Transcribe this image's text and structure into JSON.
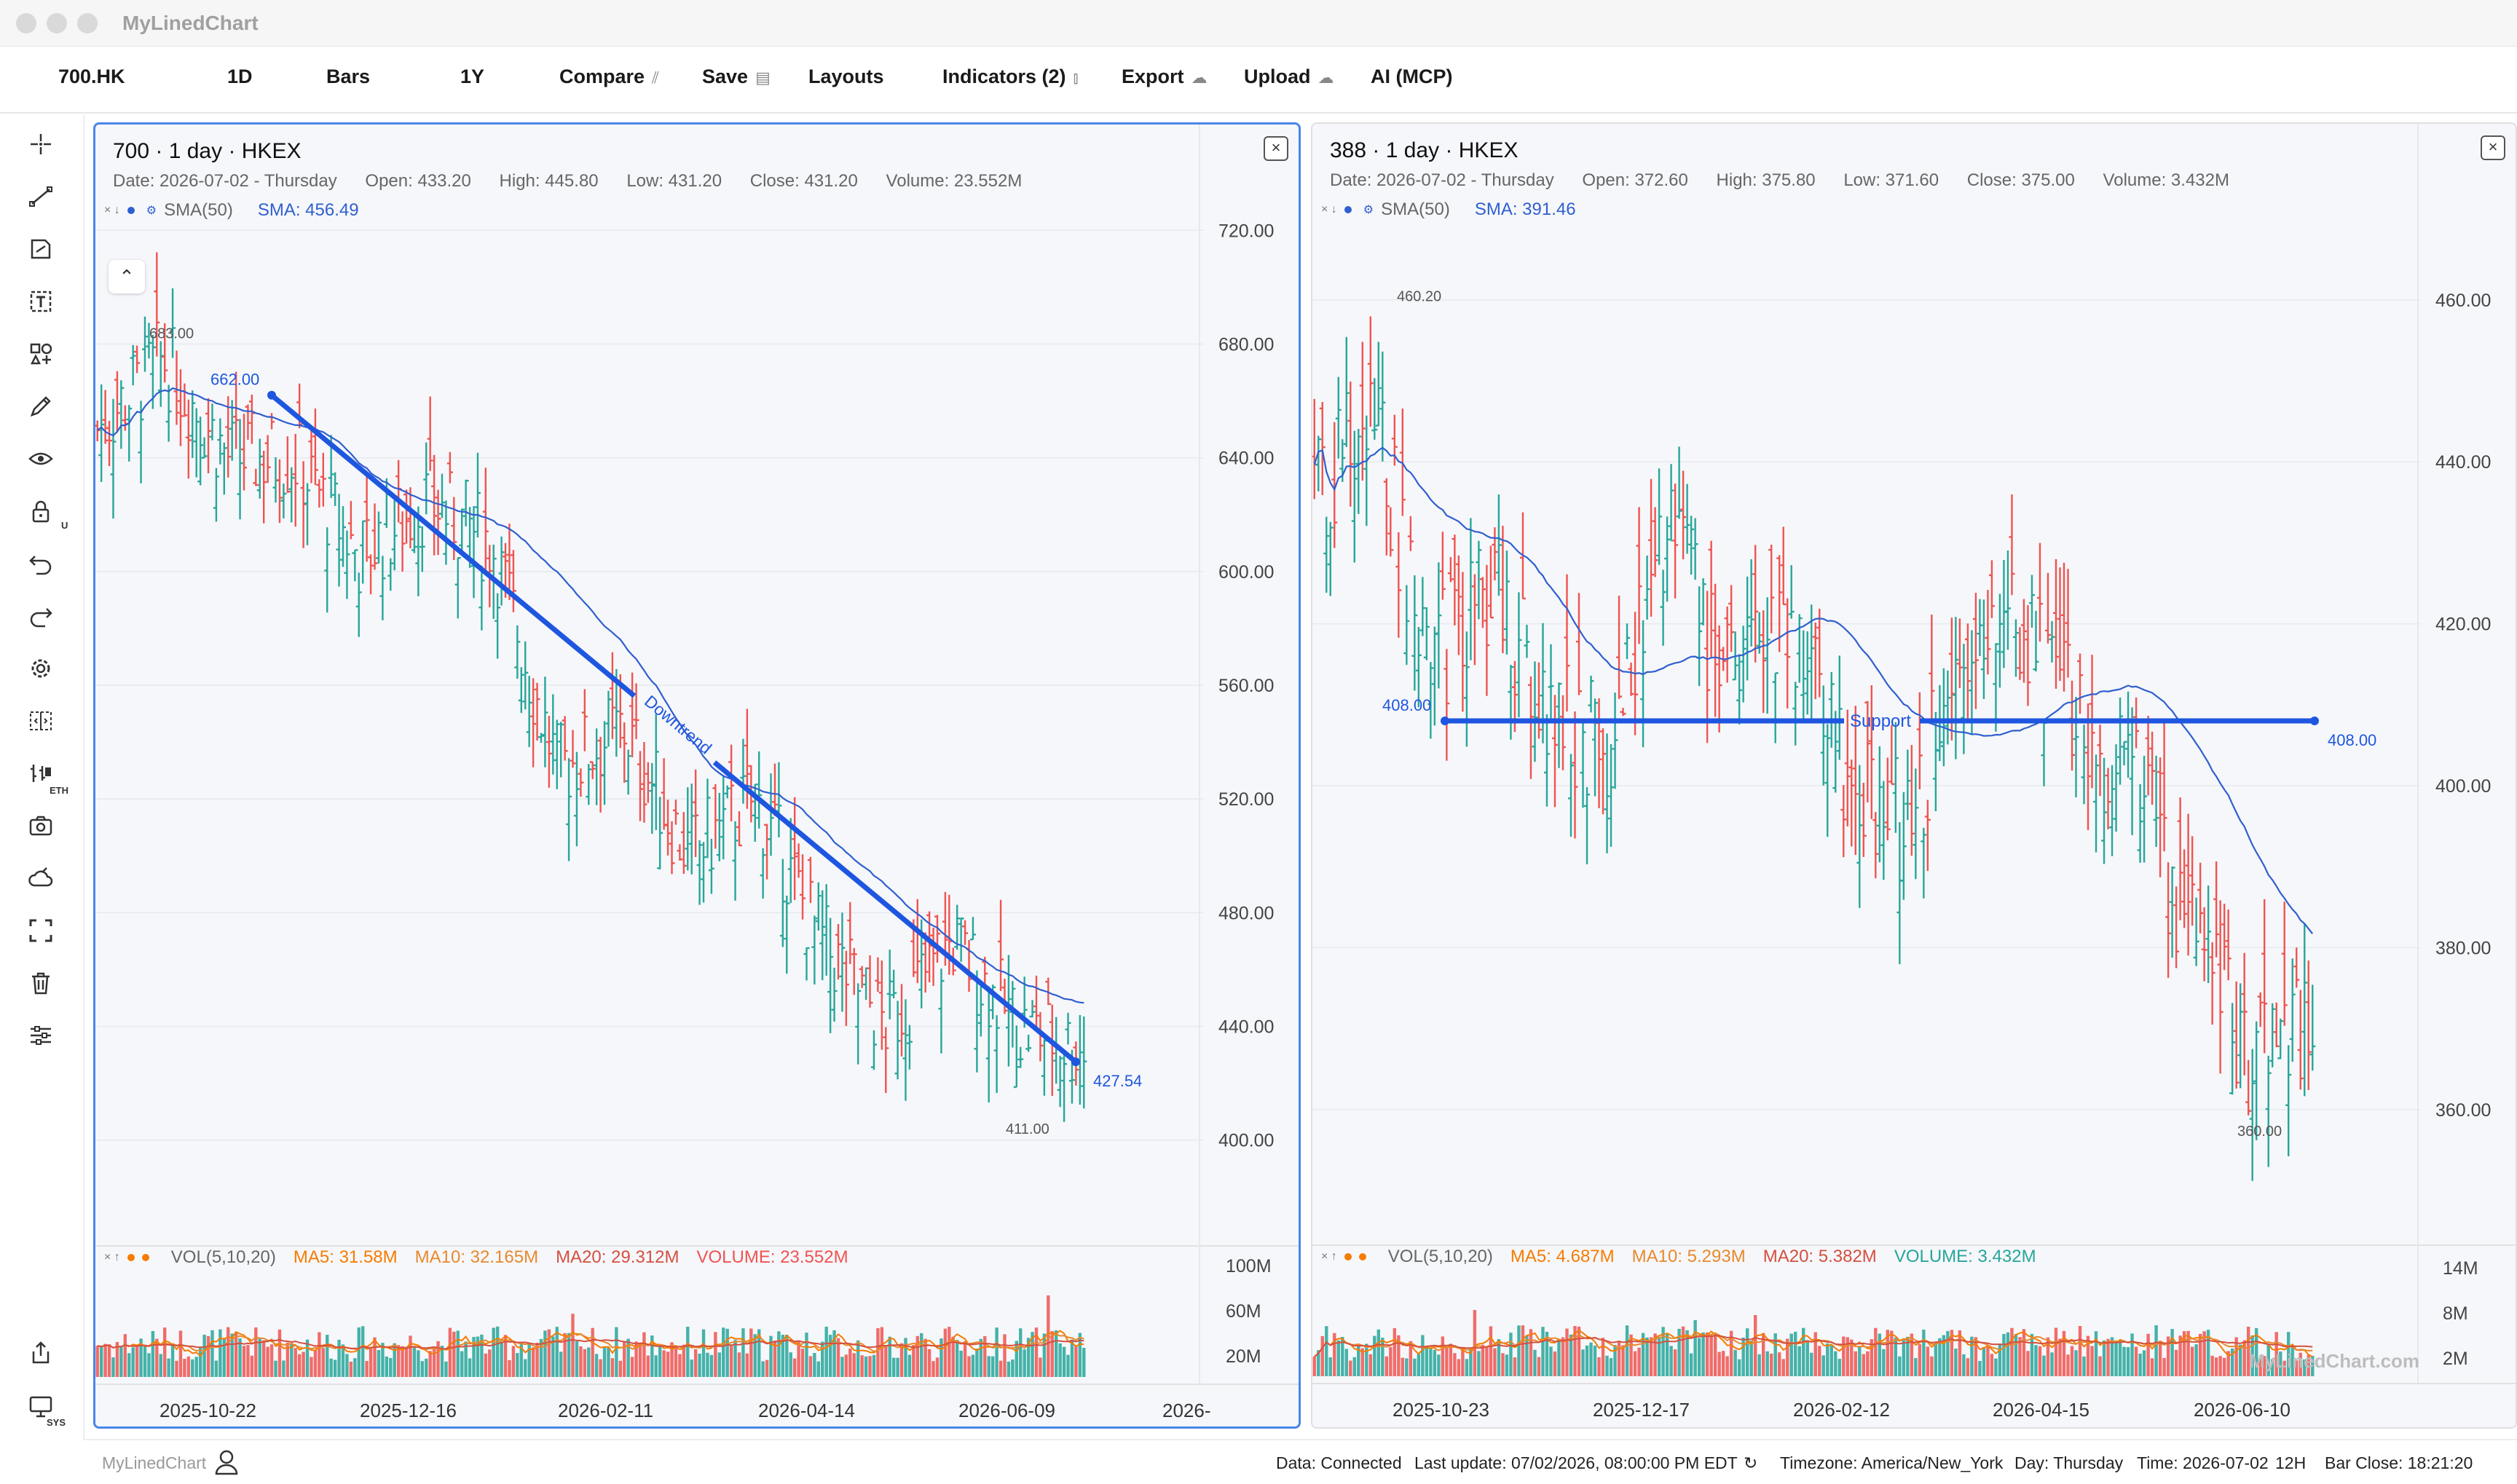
{
  "window": {
    "title": "MyLinedChart"
  },
  "toolbar": {
    "symbol": "700.HK",
    "interval": "1D",
    "chart_type": "Bars",
    "range": "1Y",
    "compare": "Compare",
    "save": "Save",
    "layouts": "Layouts",
    "indicators": "Indicators (2)",
    "export": "Export",
    "upload": "Upload",
    "ai": "AI (MCP)"
  },
  "left_tools": [
    "crosshair-icon",
    "trendline-icon",
    "fib-icon",
    "text-icon",
    "shapes-icon",
    "pencil-icon",
    "eye-icon",
    "lock-icon",
    "undo-icon",
    "redo-icon",
    "settings-icon",
    "compare-icon",
    "eth-icon",
    "camera-icon",
    "cloud-icon",
    "fullscreen-icon",
    "trash-icon",
    "sliders-icon"
  ],
  "left_tool_labels": {
    "lock": "U",
    "eth": "ETH",
    "sys": "SYS"
  },
  "colors": {
    "up": "#26a69a",
    "down": "#ef5350",
    "sma": "#2f5fd0",
    "drawing": "#1e56e0",
    "ma5": "#f57c00",
    "ma10": "#e8892d",
    "ma20": "#d45040",
    "accent": "#4a86e8"
  },
  "panes": [
    {
      "title": "700 · 1 day · HKEX",
      "info": {
        "date": "Date: 2026-07-02 - Thursday",
        "open": "Open: 433.20",
        "high": "High: 445.80",
        "low": "Low: 431.20",
        "close": "Close: 431.20",
        "volume": "Volume: 23.552M"
      },
      "sma_label": "SMA(50)",
      "sma_value": "SMA: 456.49",
      "vol": {
        "label": "VOL(5,10,20)",
        "ma5": "MA5: 31.58M",
        "ma10": "MA10: 32.165M",
        "ma20": "MA20: 29.312M",
        "volume": "VOLUME: 23.552M"
      },
      "price_ticks": [
        "720.00",
        "680.00",
        "640.00",
        "600.00",
        "560.00",
        "520.00",
        "480.00",
        "440.00",
        "400.00"
      ],
      "vol_ticks": [
        "100M",
        "60M",
        "20M"
      ],
      "date_ticks": [
        "2025-10-22",
        "2025-12-16",
        "2026-02-11",
        "2026-04-14",
        "2026-06-09",
        "2026-"
      ],
      "annotations": {
        "high": "683.00",
        "low": "411.00",
        "line_start": "662.00",
        "line_end": "427.54",
        "line_text": "Downtrend"
      }
    },
    {
      "title": "388 · 1 day · HKEX",
      "info": {
        "date": "Date: 2026-07-02 - Thursday",
        "open": "Open: 372.60",
        "high": "High: 375.80",
        "low": "Low: 371.60",
        "close": "Close: 375.00",
        "volume": "Volume: 3.432M"
      },
      "sma_label": "SMA(50)",
      "sma_value": "SMA: 391.46",
      "vol": {
        "label": "VOL(5,10,20)",
        "ma5": "MA5: 4.687M",
        "ma10": "MA10: 5.293M",
        "ma20": "MA20: 5.382M",
        "volume": "VOLUME: 3.432M"
      },
      "price_ticks": [
        "460.00",
        "440.00",
        "420.00",
        "400.00",
        "380.00",
        "360.00"
      ],
      "vol_ticks": [
        "14M",
        "8M",
        "2M"
      ],
      "date_ticks": [
        "2025-10-23",
        "2025-12-17",
        "2026-02-12",
        "2026-04-15",
        "2026-06-10"
      ],
      "annotations": {
        "high": "460.20",
        "low": "360.00",
        "line_start": "408.00",
        "line_end": "408.00",
        "line_text": "Support"
      },
      "watermark": "MyLinedChart.com"
    }
  ],
  "status": {
    "brand": "MyLinedChart",
    "data": "Data: Connected",
    "last_update": "Last update: 07/02/2026, 08:00:00 PM EDT",
    "timezone": "Timezone: America/New_York",
    "day": "Day: Thursday",
    "time": "Time: 2026-07-02",
    "hours": "12H",
    "bar_close": "Bar Close: 18:21:20"
  }
}
